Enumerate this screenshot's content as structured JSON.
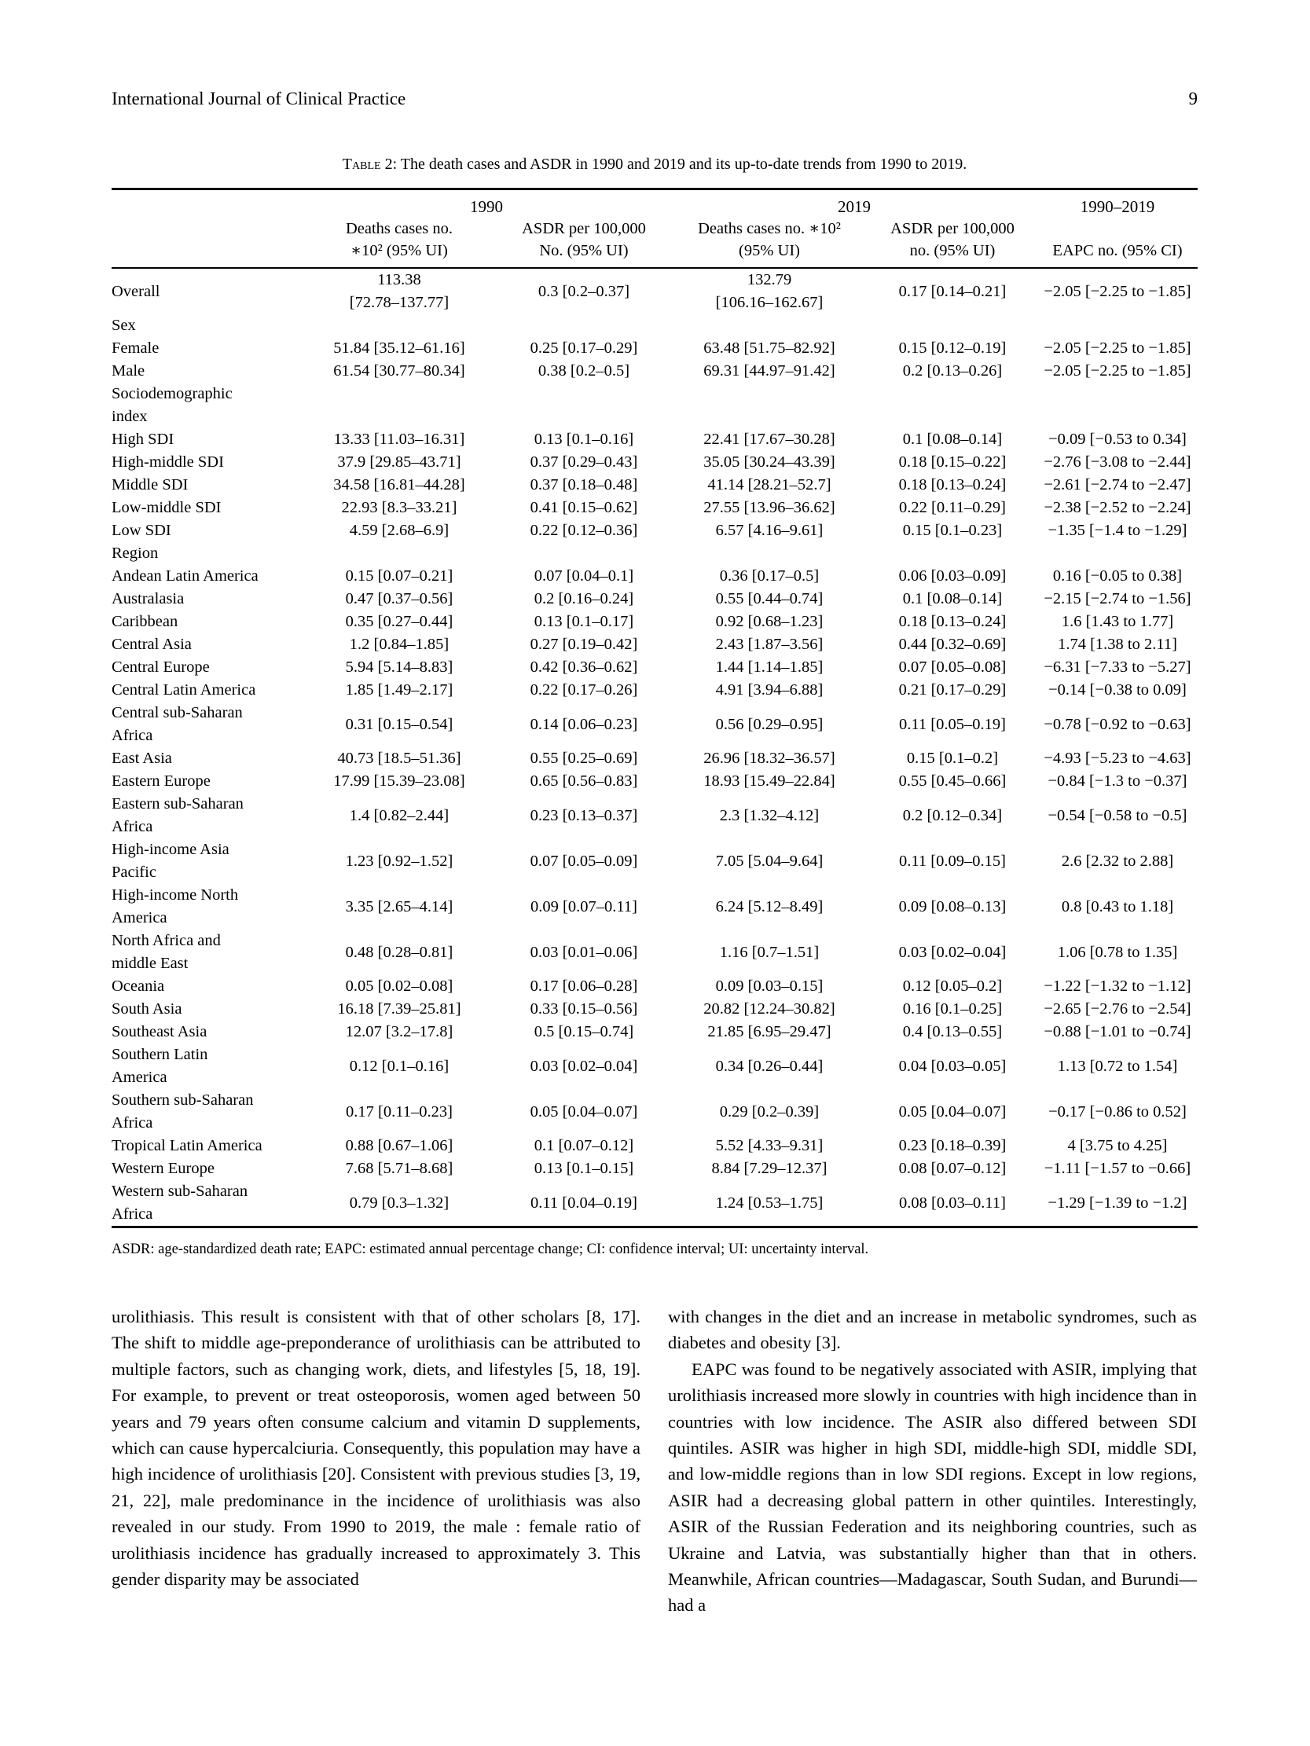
{
  "page_header": {
    "journal": "International Journal of Clinical Practice",
    "page_number": "9"
  },
  "table": {
    "caption_label": "Table 2:",
    "caption_text": " The death cases and ASDR in 1990 and 2019 and its up-to-date trends from 1990 to 2019.",
    "group_headers": {
      "g1990": "1990",
      "g2019": "2019",
      "gtrend": "1990–2019"
    },
    "column_headers": {
      "deaths_1990": "Deaths cases no.\n∗10² (95% UI)",
      "asdr_1990": "ASDR per 100,000\nNo. (95% UI)",
      "deaths_2019": "Deaths cases no. ∗10²\n(95% UI)",
      "asdr_2019": "ASDR per 100,000\nno. (95% UI)",
      "eapc": "EAPC no. (95% CI)"
    },
    "rows": [
      {
        "label": "Overall",
        "deaths_1990": "113.38\n[72.78–137.77]",
        "asdr_1990": "0.3 [0.2–0.37]",
        "deaths_2019": "132.79\n[106.16–162.67]",
        "asdr_2019": "0.17 [0.14–0.21]",
        "eapc": "−2.05 [−2.25 to −1.85]"
      },
      {
        "section": true,
        "label": "Sex"
      },
      {
        "label": "Female",
        "deaths_1990": "51.84 [35.12–61.16]",
        "asdr_1990": "0.25 [0.17–0.29]",
        "deaths_2019": "63.48 [51.75–82.92]",
        "asdr_2019": "0.15 [0.12–0.19]",
        "eapc": "−2.05 [−2.25 to −1.85]"
      },
      {
        "label": "Male",
        "deaths_1990": "61.54 [30.77–80.34]",
        "asdr_1990": "0.38 [0.2–0.5]",
        "deaths_2019": "69.31 [44.97–91.42]",
        "asdr_2019": "0.2 [0.13–0.26]",
        "eapc": "−2.05 [−2.25 to −1.85]"
      },
      {
        "section": true,
        "label": "Sociodemographic\nindex"
      },
      {
        "label": "High SDI",
        "deaths_1990": "13.33 [11.03–16.31]",
        "asdr_1990": "0.13 [0.1–0.16]",
        "deaths_2019": "22.41 [17.67–30.28]",
        "asdr_2019": "0.1 [0.08–0.14]",
        "eapc": "−0.09 [−0.53 to 0.34]"
      },
      {
        "label": "High-middle SDI",
        "deaths_1990": "37.9 [29.85–43.71]",
        "asdr_1990": "0.37 [0.29–0.43]",
        "deaths_2019": "35.05 [30.24–43.39]",
        "asdr_2019": "0.18 [0.15–0.22]",
        "eapc": "−2.76 [−3.08 to −2.44]"
      },
      {
        "label": "Middle SDI",
        "deaths_1990": "34.58 [16.81–44.28]",
        "asdr_1990": "0.37 [0.18–0.48]",
        "deaths_2019": "41.14 [28.21–52.7]",
        "asdr_2019": "0.18 [0.13–0.24]",
        "eapc": "−2.61 [−2.74 to −2.47]"
      },
      {
        "label": "Low-middle SDI",
        "deaths_1990": "22.93 [8.3–33.21]",
        "asdr_1990": "0.41 [0.15–0.62]",
        "deaths_2019": "27.55 [13.96–36.62]",
        "asdr_2019": "0.22 [0.11–0.29]",
        "eapc": "−2.38 [−2.52 to −2.24]"
      },
      {
        "label": "Low SDI",
        "deaths_1990": "4.59 [2.68–6.9]",
        "asdr_1990": "0.22 [0.12–0.36]",
        "deaths_2019": "6.57 [4.16–9.61]",
        "asdr_2019": "0.15 [0.1–0.23]",
        "eapc": "−1.35 [−1.4 to −1.29]"
      },
      {
        "section": true,
        "label": "Region"
      },
      {
        "label": "Andean Latin America",
        "deaths_1990": "0.15 [0.07–0.21]",
        "asdr_1990": "0.07 [0.04–0.1]",
        "deaths_2019": "0.36 [0.17–0.5]",
        "asdr_2019": "0.06 [0.03–0.09]",
        "eapc": "0.16 [−0.05 to 0.38]"
      },
      {
        "label": "Australasia",
        "deaths_1990": "0.47 [0.37–0.56]",
        "asdr_1990": "0.2 [0.16–0.24]",
        "deaths_2019": "0.55 [0.44–0.74]",
        "asdr_2019": "0.1 [0.08–0.14]",
        "eapc": "−2.15 [−2.74 to −1.56]"
      },
      {
        "label": "Caribbean",
        "deaths_1990": "0.35 [0.27–0.44]",
        "asdr_1990": "0.13 [0.1–0.17]",
        "deaths_2019": "0.92 [0.68–1.23]",
        "asdr_2019": "0.18 [0.13–0.24]",
        "eapc": "1.6 [1.43 to 1.77]"
      },
      {
        "label": "Central Asia",
        "deaths_1990": "1.2 [0.84–1.85]",
        "asdr_1990": "0.27 [0.19–0.42]",
        "deaths_2019": "2.43 [1.87–3.56]",
        "asdr_2019": "0.44 [0.32–0.69]",
        "eapc": "1.74 [1.38 to 2.11]"
      },
      {
        "label": "Central Europe",
        "deaths_1990": "5.94 [5.14–8.83]",
        "asdr_1990": "0.42 [0.36–0.62]",
        "deaths_2019": "1.44 [1.14–1.85]",
        "asdr_2019": "0.07 [0.05–0.08]",
        "eapc": "−6.31 [−7.33 to −5.27]"
      },
      {
        "label": "Central Latin America",
        "deaths_1990": "1.85 [1.49–2.17]",
        "asdr_1990": "0.22 [0.17–0.26]",
        "deaths_2019": "4.91 [3.94–6.88]",
        "asdr_2019": "0.21 [0.17–0.29]",
        "eapc": "−0.14 [−0.38 to 0.09]"
      },
      {
        "label": "Central sub-Saharan\nAfrica",
        "deaths_1990": "0.31 [0.15–0.54]",
        "asdr_1990": "0.14 [0.06–0.23]",
        "deaths_2019": "0.56 [0.29–0.95]",
        "asdr_2019": "0.11 [0.05–0.19]",
        "eapc": "−0.78 [−0.92 to −0.63]"
      },
      {
        "label": "East Asia",
        "deaths_1990": "40.73 [18.5–51.36]",
        "asdr_1990": "0.55 [0.25–0.69]",
        "deaths_2019": "26.96 [18.32–36.57]",
        "asdr_2019": "0.15 [0.1–0.2]",
        "eapc": "−4.93 [−5.23 to −4.63]"
      },
      {
        "label": "Eastern Europe",
        "deaths_1990": "17.99 [15.39–23.08]",
        "asdr_1990": "0.65 [0.56–0.83]",
        "deaths_2019": "18.93 [15.49–22.84]",
        "asdr_2019": "0.55 [0.45–0.66]",
        "eapc": "−0.84 [−1.3 to −0.37]"
      },
      {
        "label": "Eastern sub-Saharan\nAfrica",
        "deaths_1990": "1.4 [0.82–2.44]",
        "asdr_1990": "0.23 [0.13–0.37]",
        "deaths_2019": "2.3 [1.32–4.12]",
        "asdr_2019": "0.2 [0.12–0.34]",
        "eapc": "−0.54 [−0.58 to −0.5]"
      },
      {
        "label": "High-income Asia\nPacific",
        "deaths_1990": "1.23 [0.92–1.52]",
        "asdr_1990": "0.07 [0.05–0.09]",
        "deaths_2019": "7.05 [5.04–9.64]",
        "asdr_2019": "0.11 [0.09–0.15]",
        "eapc": "2.6 [2.32 to 2.88]"
      },
      {
        "label": "High-income North\nAmerica",
        "deaths_1990": "3.35 [2.65–4.14]",
        "asdr_1990": "0.09 [0.07–0.11]",
        "deaths_2019": "6.24 [5.12–8.49]",
        "asdr_2019": "0.09 [0.08–0.13]",
        "eapc": "0.8 [0.43 to 1.18]"
      },
      {
        "label": "North Africa and\nmiddle East",
        "deaths_1990": "0.48 [0.28–0.81]",
        "asdr_1990": "0.03 [0.01–0.06]",
        "deaths_2019": "1.16 [0.7–1.51]",
        "asdr_2019": "0.03 [0.02–0.04]",
        "eapc": "1.06 [0.78 to 1.35]"
      },
      {
        "label": "Oceania",
        "deaths_1990": "0.05 [0.02–0.08]",
        "asdr_1990": "0.17 [0.06–0.28]",
        "deaths_2019": "0.09 [0.03–0.15]",
        "asdr_2019": "0.12 [0.05–0.2]",
        "eapc": "−1.22 [−1.32 to −1.12]"
      },
      {
        "label": "South Asia",
        "deaths_1990": "16.18 [7.39–25.81]",
        "asdr_1990": "0.33 [0.15–0.56]",
        "deaths_2019": "20.82 [12.24–30.82]",
        "asdr_2019": "0.16 [0.1–0.25]",
        "eapc": "−2.65 [−2.76 to −2.54]"
      },
      {
        "label": "Southeast Asia",
        "deaths_1990": "12.07 [3.2–17.8]",
        "asdr_1990": "0.5 [0.15–0.74]",
        "deaths_2019": "21.85 [6.95–29.47]",
        "asdr_2019": "0.4 [0.13–0.55]",
        "eapc": "−0.88 [−1.01 to −0.74]"
      },
      {
        "label": "Southern Latin\nAmerica",
        "deaths_1990": "0.12 [0.1–0.16]",
        "asdr_1990": "0.03 [0.02–0.04]",
        "deaths_2019": "0.34 [0.26–0.44]",
        "asdr_2019": "0.04 [0.03–0.05]",
        "eapc": "1.13 [0.72 to 1.54]"
      },
      {
        "label": "Southern sub-Saharan\nAfrica",
        "deaths_1990": "0.17 [0.11–0.23]",
        "asdr_1990": "0.05 [0.04–0.07]",
        "deaths_2019": "0.29 [0.2–0.39]",
        "asdr_2019": "0.05 [0.04–0.07]",
        "eapc": "−0.17 [−0.86 to 0.52]"
      },
      {
        "label": "Tropical Latin America",
        "deaths_1990": "0.88 [0.67–1.06]",
        "asdr_1990": "0.1 [0.07–0.12]",
        "deaths_2019": "5.52 [4.33–9.31]",
        "asdr_2019": "0.23 [0.18–0.39]",
        "eapc": "4 [3.75 to 4.25]"
      },
      {
        "label": "Western Europe",
        "deaths_1990": "7.68 [5.71–8.68]",
        "asdr_1990": "0.13 [0.1–0.15]",
        "deaths_2019": "8.84 [7.29–12.37]",
        "asdr_2019": "0.08 [0.07–0.12]",
        "eapc": "−1.11 [−1.57 to −0.66]"
      },
      {
        "label": "Western sub-Saharan\nAfrica",
        "deaths_1990": "0.79 [0.3–1.32]",
        "asdr_1990": "0.11 [0.04–0.19]",
        "deaths_2019": "1.24 [0.53–1.75]",
        "asdr_2019": "0.08 [0.03–0.11]",
        "eapc": "−1.29 [−1.39 to −1.2]"
      }
    ],
    "footnote": "ASDR: age-standardized death rate; EAPC: estimated annual percentage change; CI: confidence interval; UI: uncertainty interval."
  },
  "body_text": {
    "left_column": [
      "urolithiasis. This result is consistent with that of other scholars [8, 17]. The shift to middle age-preponderance of urolithiasis can be attributed to multiple factors, such as changing work, diets, and lifestyles [5, 18, 19]. For example, to prevent or treat osteoporosis, women aged between 50 years and 79 years often consume calcium and vitamin D supplements, which can cause hypercalciuria. Consequently, this population may have a high incidence of urolithiasis [20]. Consistent with previous studies [3, 19, 21, 22], male predominance in the incidence of urolithiasis was also revealed in our study. From 1990 to 2019, the male : female ratio of urolithiasis incidence has gradually increased to approximately 3. This gender disparity may be associated"
    ],
    "right_column": [
      "with changes in the diet and an increase in metabolic syndromes, such as diabetes and obesity [3].",
      "EAPC was found to be negatively associated with ASIR, implying that urolithiasis increased more slowly in countries with high incidence than in countries with low incidence. The ASIR also differed between SDI quintiles. ASIR was higher in high SDI, middle-high SDI, middle SDI, and low-middle regions than in low SDI regions. Except in low regions, ASIR had a decreasing global pattern in other quintiles. Interestingly, ASIR of the Russian Federation and its neighboring countries, such as Ukraine and Latvia, was substantially higher than that in others. Meanwhile, African countries—Madagascar, South Sudan, and Burundi—had a"
    ]
  }
}
